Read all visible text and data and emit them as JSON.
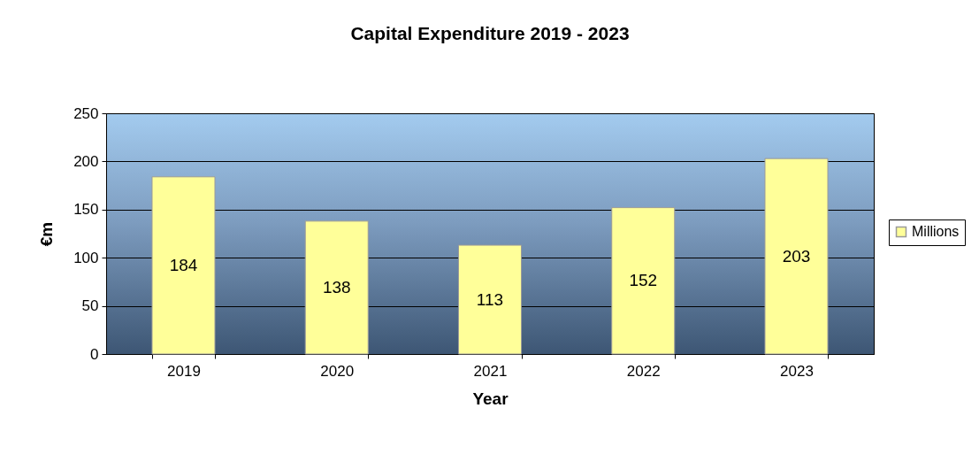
{
  "chart_data": {
    "type": "bar",
    "title": "Capital Expenditure 2019 - 2023",
    "xlabel": "Year",
    "ylabel": "€m",
    "categories": [
      "2019",
      "2020",
      "2021",
      "2022",
      "2023"
    ],
    "series": [
      {
        "name": "Millions",
        "color": "#ffff99",
        "values": [
          184,
          138,
          113,
          152,
          203
        ]
      }
    ],
    "ylim": [
      0,
      250
    ],
    "yticks": [
      0,
      50,
      100,
      150,
      200,
      250
    ],
    "grid": "y",
    "legend": "right",
    "data_labels": true
  }
}
